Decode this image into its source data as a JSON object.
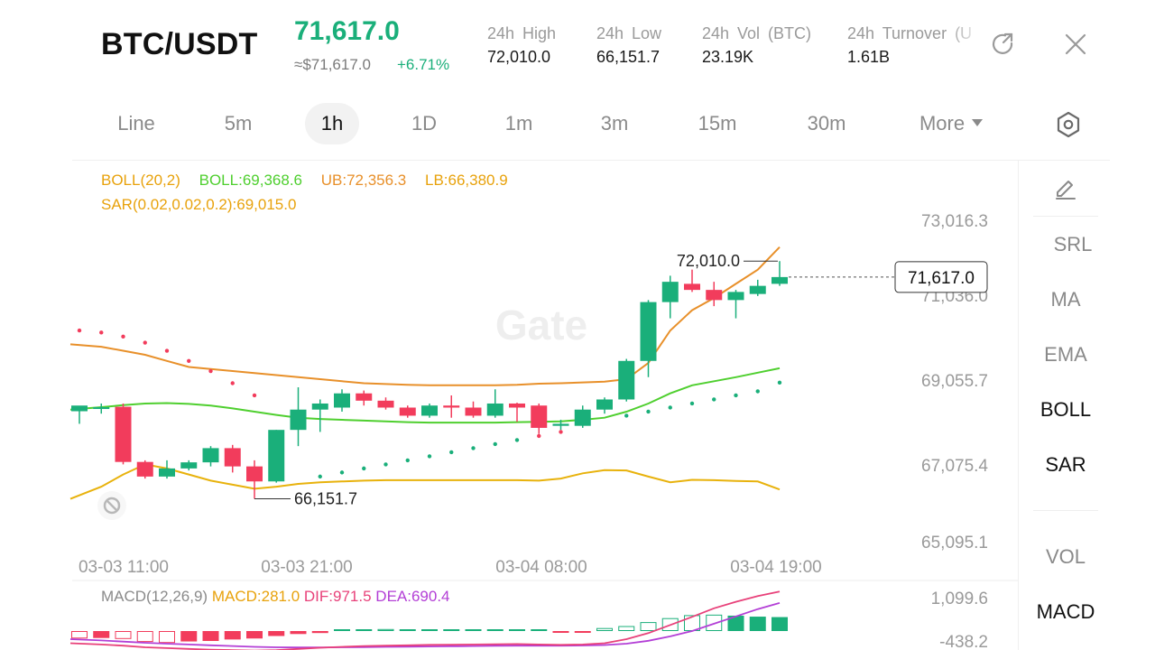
{
  "header": {
    "pair": "BTC/USDT",
    "last_price": "71,617.0",
    "approx_usd": "≈$71,617.0",
    "change_pct": "+6.71%",
    "stats": [
      {
        "label": "24h High",
        "value": "72,010.0"
      },
      {
        "label": "24h Low",
        "value": "66,151.7"
      },
      {
        "label": "24h Vol (BTC)",
        "value": "23.19K"
      },
      {
        "label": "24h Turnover (U",
        "value": "1.61B"
      }
    ],
    "share_icon": "share-refresh-icon",
    "close_icon": "close-icon"
  },
  "intervals": {
    "items": [
      "Line",
      "5m",
      "1h",
      "1D",
      "1m",
      "3m",
      "15m",
      "30m",
      "More"
    ],
    "active": "1h",
    "settings_icon": "hexagon-settings-icon"
  },
  "indicators": {
    "boll_name": "BOLL(20,2)",
    "boll_mid": "BOLL:69,368.6",
    "boll_ub": "UB:72,356.3",
    "boll_lb": "LB:66,380.9",
    "sar": "SAR(0.02,0.02,0.2):69,015.0",
    "macd_name": "MACD(12,26,9)",
    "macd": "MACD:281.0",
    "dif": "DIF:971.5",
    "dea": "DEA:690.4"
  },
  "right_panel": {
    "edit_icon": "pencil-icon",
    "items": [
      "SRL",
      "MA",
      "EMA",
      "BOLL",
      "SAR",
      "VOL",
      "MACD"
    ],
    "active": [
      "BOLL",
      "SAR",
      "MACD"
    ]
  },
  "watermark": "Gate",
  "chart_data": {
    "type": "candlestick",
    "price_axis_labels": [
      "73,016.3",
      "71,036.0",
      "69,055.7",
      "67,075.4",
      "65,095.1"
    ],
    "macd_axis_labels": [
      "1,099.6",
      "-438.2"
    ],
    "time_labels": [
      "03-03 11:00",
      "03-03 21:00",
      "03-04 08:00",
      "03-04 19:00"
    ],
    "current_price_tag": "71,617.0",
    "high_marker": "72,010.0",
    "low_marker": "66,151.7",
    "colors": {
      "up": "#1aaf7a",
      "down": "#f23c5c",
      "boll_upper": "#e8902a",
      "boll_mid": "#4fcf2f",
      "boll_lower": "#e8b20c",
      "dif": "#e8417a",
      "dea": "#b33fd6"
    },
    "candles": [
      {
        "o": 68310,
        "h": 68400,
        "l": 68000,
        "c": 68450
      },
      {
        "o": 68400,
        "h": 68500,
        "l": 68250,
        "c": 68410
      },
      {
        "o": 68420,
        "h": 68500,
        "l": 67000,
        "c": 67060
      },
      {
        "o": 67060,
        "h": 67100,
        "l": 66650,
        "c": 66700
      },
      {
        "o": 66700,
        "h": 67100,
        "l": 66650,
        "c": 66900
      },
      {
        "o": 66900,
        "h": 67100,
        "l": 66850,
        "c": 67050
      },
      {
        "o": 67050,
        "h": 67450,
        "l": 66950,
        "c": 67400
      },
      {
        "o": 67400,
        "h": 67480,
        "l": 66800,
        "c": 66950
      },
      {
        "o": 66950,
        "h": 67100,
        "l": 66151.7,
        "c": 66580
      },
      {
        "o": 66580,
        "h": 67850,
        "l": 66550,
        "c": 67850
      },
      {
        "o": 67850,
        "h": 68900,
        "l": 67450,
        "c": 68350
      },
      {
        "o": 68350,
        "h": 68600,
        "l": 67800,
        "c": 68500
      },
      {
        "o": 68400,
        "h": 68850,
        "l": 68300,
        "c": 68750
      },
      {
        "o": 68750,
        "h": 68820,
        "l": 68450,
        "c": 68570
      },
      {
        "o": 68570,
        "h": 68650,
        "l": 68350,
        "c": 68400
      },
      {
        "o": 68400,
        "h": 68450,
        "l": 68150,
        "c": 68200
      },
      {
        "o": 68200,
        "h": 68500,
        "l": 68150,
        "c": 68450
      },
      {
        "o": 68450,
        "h": 68700,
        "l": 68150,
        "c": 68400
      },
      {
        "o": 68400,
        "h": 68550,
        "l": 68150,
        "c": 68200
      },
      {
        "o": 68200,
        "h": 68850,
        "l": 68150,
        "c": 68500
      },
      {
        "o": 68500,
        "h": 68520,
        "l": 68050,
        "c": 68400
      },
      {
        "o": 68450,
        "h": 68500,
        "l": 67750,
        "c": 67900
      },
      {
        "o": 67950,
        "h": 68100,
        "l": 67850,
        "c": 68000
      },
      {
        "o": 67950,
        "h": 68450,
        "l": 67900,
        "c": 68350
      },
      {
        "o": 68350,
        "h": 68650,
        "l": 68250,
        "c": 68600
      },
      {
        "o": 68600,
        "h": 69600,
        "l": 68550,
        "c": 69550
      },
      {
        "o": 69550,
        "h": 71050,
        "l": 69150,
        "c": 71000
      },
      {
        "o": 71000,
        "h": 71650,
        "l": 70600,
        "c": 71500
      },
      {
        "o": 71450,
        "h": 71800,
        "l": 71250,
        "c": 71300
      },
      {
        "o": 71300,
        "h": 71500,
        "l": 70900,
        "c": 71050
      },
      {
        "o": 71050,
        "h": 71300,
        "l": 70600,
        "c": 71250
      },
      {
        "o": 71200,
        "h": 71550,
        "l": 71150,
        "c": 71400
      },
      {
        "o": 71450,
        "h": 72010,
        "l": 71400,
        "c": 71617
      }
    ],
    "macd_hist": [
      -150,
      -140,
      -160,
      -220,
      -240,
      -210,
      -200,
      -170,
      -150,
      -100,
      -60,
      -40,
      20,
      30,
      40,
      30,
      20,
      25,
      20,
      30,
      20,
      30,
      -20,
      -10,
      60,
      100,
      180,
      260,
      320,
      330,
      310,
      290,
      281
    ]
  }
}
